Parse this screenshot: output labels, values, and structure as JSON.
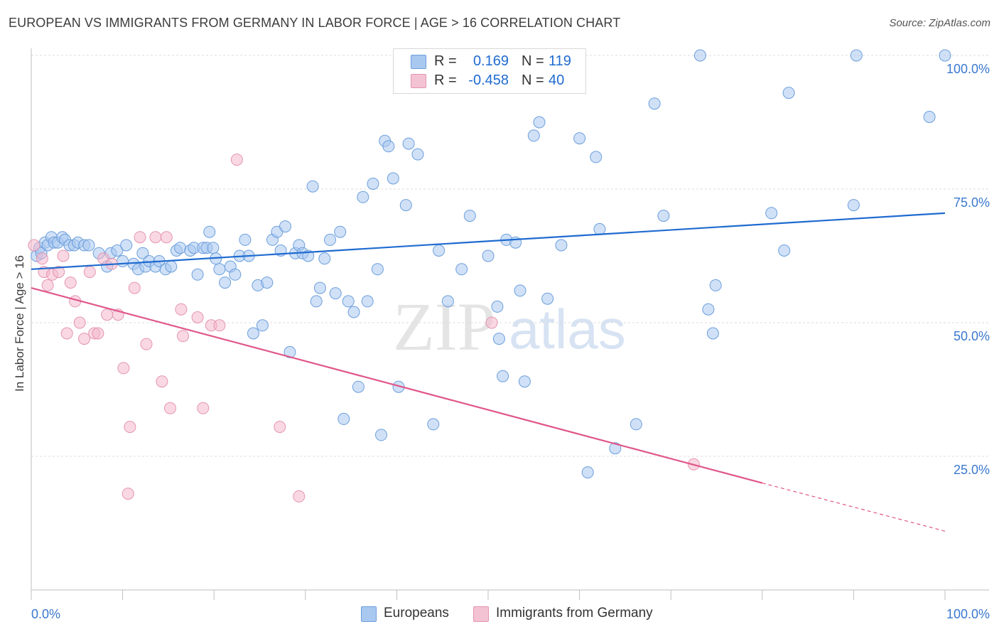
{
  "title": "EUROPEAN VS IMMIGRANTS FROM GERMANY IN LABOR FORCE | AGE > 16 CORRELATION CHART",
  "source": "Source: ZipAtlas.com",
  "watermark": {
    "part1": "ZIP",
    "part2": "atlas"
  },
  "colors": {
    "blue": "#1f6bd0",
    "blue_fill": "#a9c8f0",
    "pink": "#e0578a",
    "pink_fill": "#f4b8cc",
    "axis_text": "#3a78cf",
    "grid": "#dcdcdc"
  },
  "legend": {
    "rows": [
      {
        "r_label": "R =",
        "r_value": "0.169",
        "n_label": "N =",
        "n_value": "119"
      },
      {
        "r_label": "R =",
        "r_value": "-0.458",
        "n_label": "N =",
        "n_value": "40"
      }
    ]
  },
  "chart_data": {
    "type": "scatter",
    "title": "EUROPEAN VS IMMIGRANTS FROM GERMANY IN LABOR FORCE | AGE > 16 CORRELATION CHART",
    "xlabel": "",
    "ylabel": "In Labor Force | Age > 16",
    "xlim": [
      0,
      100
    ],
    "ylim": [
      0,
      100
    ],
    "x_tick_labels": [
      "0.0%",
      "100.0%"
    ],
    "y_tick_labels": [
      "25.0%",
      "50.0%",
      "75.0%",
      "100.0%"
    ],
    "y_ticks": [
      25,
      50,
      75,
      100
    ],
    "grid": true,
    "legend_position": "top-center",
    "series": [
      {
        "name": "Europeans",
        "color": "#1f6bd0",
        "fill": "#a9c8f0",
        "r": 0.169,
        "n": 119,
        "trend": {
          "x0": 0,
          "y0": 60.0,
          "x1": 100,
          "y1": 70.5
        },
        "points": [
          [
            0.6,
            62.5
          ],
          [
            0.9,
            64
          ],
          [
            1.1,
            63
          ],
          [
            1.5,
            65
          ],
          [
            1.8,
            64.5
          ],
          [
            2.2,
            66
          ],
          [
            2.5,
            65
          ],
          [
            2.9,
            65
          ],
          [
            3.4,
            66
          ],
          [
            3.7,
            65.5
          ],
          [
            4.2,
            64.5
          ],
          [
            4.7,
            64.5
          ],
          [
            5.1,
            65
          ],
          [
            5.8,
            64.5
          ],
          [
            6.3,
            64.5
          ],
          [
            7.4,
            63
          ],
          [
            8.3,
            60.5
          ],
          [
            8.7,
            63
          ],
          [
            9.4,
            63.5
          ],
          [
            10,
            61.5
          ],
          [
            10.4,
            64.5
          ],
          [
            11.2,
            61
          ],
          [
            11.7,
            60
          ],
          [
            12.2,
            63
          ],
          [
            12.5,
            60.5
          ],
          [
            12.9,
            61.5
          ],
          [
            13.6,
            60.5
          ],
          [
            14,
            61.5
          ],
          [
            14.7,
            60
          ],
          [
            15.3,
            60.5
          ],
          [
            15.9,
            63.5
          ],
          [
            16.3,
            64
          ],
          [
            17.4,
            63.5
          ],
          [
            17.8,
            64
          ],
          [
            18.2,
            59
          ],
          [
            18.8,
            64
          ],
          [
            19.2,
            64
          ],
          [
            19.5,
            67
          ],
          [
            19.9,
            64
          ],
          [
            20.2,
            62
          ],
          [
            20.6,
            60
          ],
          [
            21.2,
            57.5
          ],
          [
            21.8,
            60.5
          ],
          [
            22.3,
            59
          ],
          [
            22.8,
            62.5
          ],
          [
            23.4,
            65.5
          ],
          [
            23.8,
            62.5
          ],
          [
            24.3,
            48
          ],
          [
            24.8,
            57
          ],
          [
            25.3,
            49.5
          ],
          [
            25.8,
            57.5
          ],
          [
            26.4,
            65.5
          ],
          [
            26.9,
            67
          ],
          [
            27.3,
            63.5
          ],
          [
            27.8,
            68
          ],
          [
            28.3,
            44.5
          ],
          [
            28.9,
            63
          ],
          [
            29.3,
            64.5
          ],
          [
            29.7,
            63
          ],
          [
            30.3,
            62.5
          ],
          [
            30.8,
            75.5
          ],
          [
            31.2,
            54
          ],
          [
            31.6,
            56.5
          ],
          [
            32.1,
            62
          ],
          [
            32.7,
            65.5
          ],
          [
            33.3,
            55.5
          ],
          [
            33.8,
            67
          ],
          [
            34.2,
            32
          ],
          [
            34.7,
            54
          ],
          [
            35.3,
            52
          ],
          [
            35.8,
            38
          ],
          [
            36.3,
            73.5
          ],
          [
            36.8,
            54
          ],
          [
            37.4,
            76
          ],
          [
            37.9,
            60
          ],
          [
            38.3,
            29
          ],
          [
            38.7,
            84
          ],
          [
            39.1,
            83
          ],
          [
            39.6,
            77
          ],
          [
            40.2,
            38
          ],
          [
            41,
            72
          ],
          [
            41.3,
            83.5
          ],
          [
            42.3,
            81.5
          ],
          [
            44,
            31
          ],
          [
            44.6,
            63.5
          ],
          [
            45.6,
            54
          ],
          [
            47.1,
            60
          ],
          [
            48,
            70
          ],
          [
            50,
            62.5
          ],
          [
            51,
            53
          ],
          [
            51.2,
            47
          ],
          [
            51.6,
            40
          ],
          [
            52,
            65.5
          ],
          [
            53,
            65
          ],
          [
            53.5,
            56
          ],
          [
            54,
            39
          ],
          [
            55,
            85
          ],
          [
            55.6,
            87.5
          ],
          [
            56.5,
            54.5
          ],
          [
            58,
            64.5
          ],
          [
            60,
            84.5
          ],
          [
            60.9,
            22
          ],
          [
            61.8,
            81
          ],
          [
            62.2,
            67.5
          ],
          [
            63.9,
            26.5
          ],
          [
            66.2,
            31
          ],
          [
            68.2,
            91
          ],
          [
            69.2,
            70
          ],
          [
            73.2,
            100
          ],
          [
            74.1,
            52.5
          ],
          [
            74.6,
            48
          ],
          [
            74.9,
            57
          ],
          [
            81,
            70.5
          ],
          [
            82.4,
            63.5
          ],
          [
            82.9,
            93
          ],
          [
            90,
            72
          ],
          [
            90.3,
            100
          ],
          [
            98.3,
            88.5
          ],
          [
            100,
            100
          ]
        ]
      },
      {
        "name": "Immigrants from Germany",
        "color": "#e0578a",
        "fill": "#f4b8cc",
        "r": -0.458,
        "n": 40,
        "trend": {
          "x0": 0,
          "y0": 56.5,
          "x1": 80,
          "y1": 20.0,
          "dash_x1": 100,
          "dash_y1": 11.0
        },
        "points": [
          [
            0.3,
            64.5
          ],
          [
            1.2,
            62
          ],
          [
            1.4,
            59.5
          ],
          [
            1.8,
            57
          ],
          [
            2.3,
            59
          ],
          [
            3,
            59.5
          ],
          [
            3.5,
            62.5
          ],
          [
            3.9,
            48
          ],
          [
            4.3,
            57.5
          ],
          [
            4.8,
            54
          ],
          [
            5.3,
            50
          ],
          [
            5.8,
            47
          ],
          [
            6.4,
            59.5
          ],
          [
            6.9,
            48
          ],
          [
            7.3,
            48
          ],
          [
            7.9,
            62
          ],
          [
            8.3,
            51.5
          ],
          [
            8.8,
            61
          ],
          [
            9.5,
            51.5
          ],
          [
            10.1,
            41.5
          ],
          [
            10.6,
            18
          ],
          [
            10.8,
            30.5
          ],
          [
            11.3,
            56.5
          ],
          [
            11.9,
            66
          ],
          [
            12.6,
            46
          ],
          [
            13.6,
            66
          ],
          [
            14.3,
            39
          ],
          [
            14.8,
            66
          ],
          [
            15.2,
            34
          ],
          [
            16.4,
            52.5
          ],
          [
            16.6,
            47.5
          ],
          [
            18.2,
            51
          ],
          [
            18.8,
            34
          ],
          [
            19.7,
            49.5
          ],
          [
            20.6,
            49.5
          ],
          [
            22.5,
            80.5
          ],
          [
            27.2,
            30.5
          ],
          [
            29.3,
            17.5
          ],
          [
            50.4,
            50
          ],
          [
            72.5,
            23.5
          ]
        ]
      }
    ]
  }
}
